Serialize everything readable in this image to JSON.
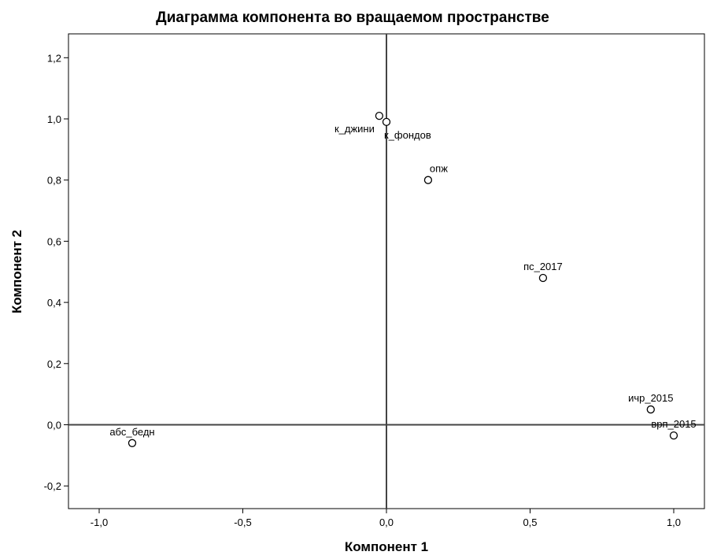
{
  "chart_data": {
    "type": "scatter",
    "title": "Диаграмма компонента во вращаемом пространстве",
    "xlabel": "Компонент 1",
    "ylabel": "Компонент 2",
    "xlim": [
      -1.1,
      1.1
    ],
    "ylim": [
      -0.28,
      1.27
    ],
    "xticks": [
      -1.0,
      -0.5,
      0.0,
      0.5,
      1.0
    ],
    "yticks": [
      -0.2,
      0.0,
      0.2,
      0.4,
      0.6,
      0.8,
      1.0,
      1.2
    ],
    "xtick_labels": [
      "-1,0",
      "-0,5",
      "0,0",
      "0,5",
      "1,0"
    ],
    "ytick_labels": [
      "-0,2",
      "0,0",
      "0,2",
      "0,4",
      "0,6",
      "0,8",
      "1,0",
      "1,2"
    ],
    "reference_lines": {
      "x": 0.0,
      "y": 0.0
    },
    "grid": false,
    "points": [
      {
        "label": "к_джини",
        "x": -0.025,
        "y": 1.01,
        "label_pos": "below-left"
      },
      {
        "label": "к_фондов",
        "x": 0.0,
        "y": 0.99,
        "label_pos": "below-right"
      },
      {
        "label": "опж",
        "x": 0.145,
        "y": 0.8,
        "label_pos": "above-right"
      },
      {
        "label": "пс_2017",
        "x": 0.545,
        "y": 0.48,
        "label_pos": "above"
      },
      {
        "label": "ичр_2015",
        "x": 0.92,
        "y": 0.05,
        "label_pos": "above"
      },
      {
        "label": "врп_2015",
        "x": 1.0,
        "y": -0.035,
        "label_pos": "above"
      },
      {
        "label": "абс_бедн",
        "x": -0.885,
        "y": -0.06,
        "label_pos": "above"
      }
    ]
  }
}
